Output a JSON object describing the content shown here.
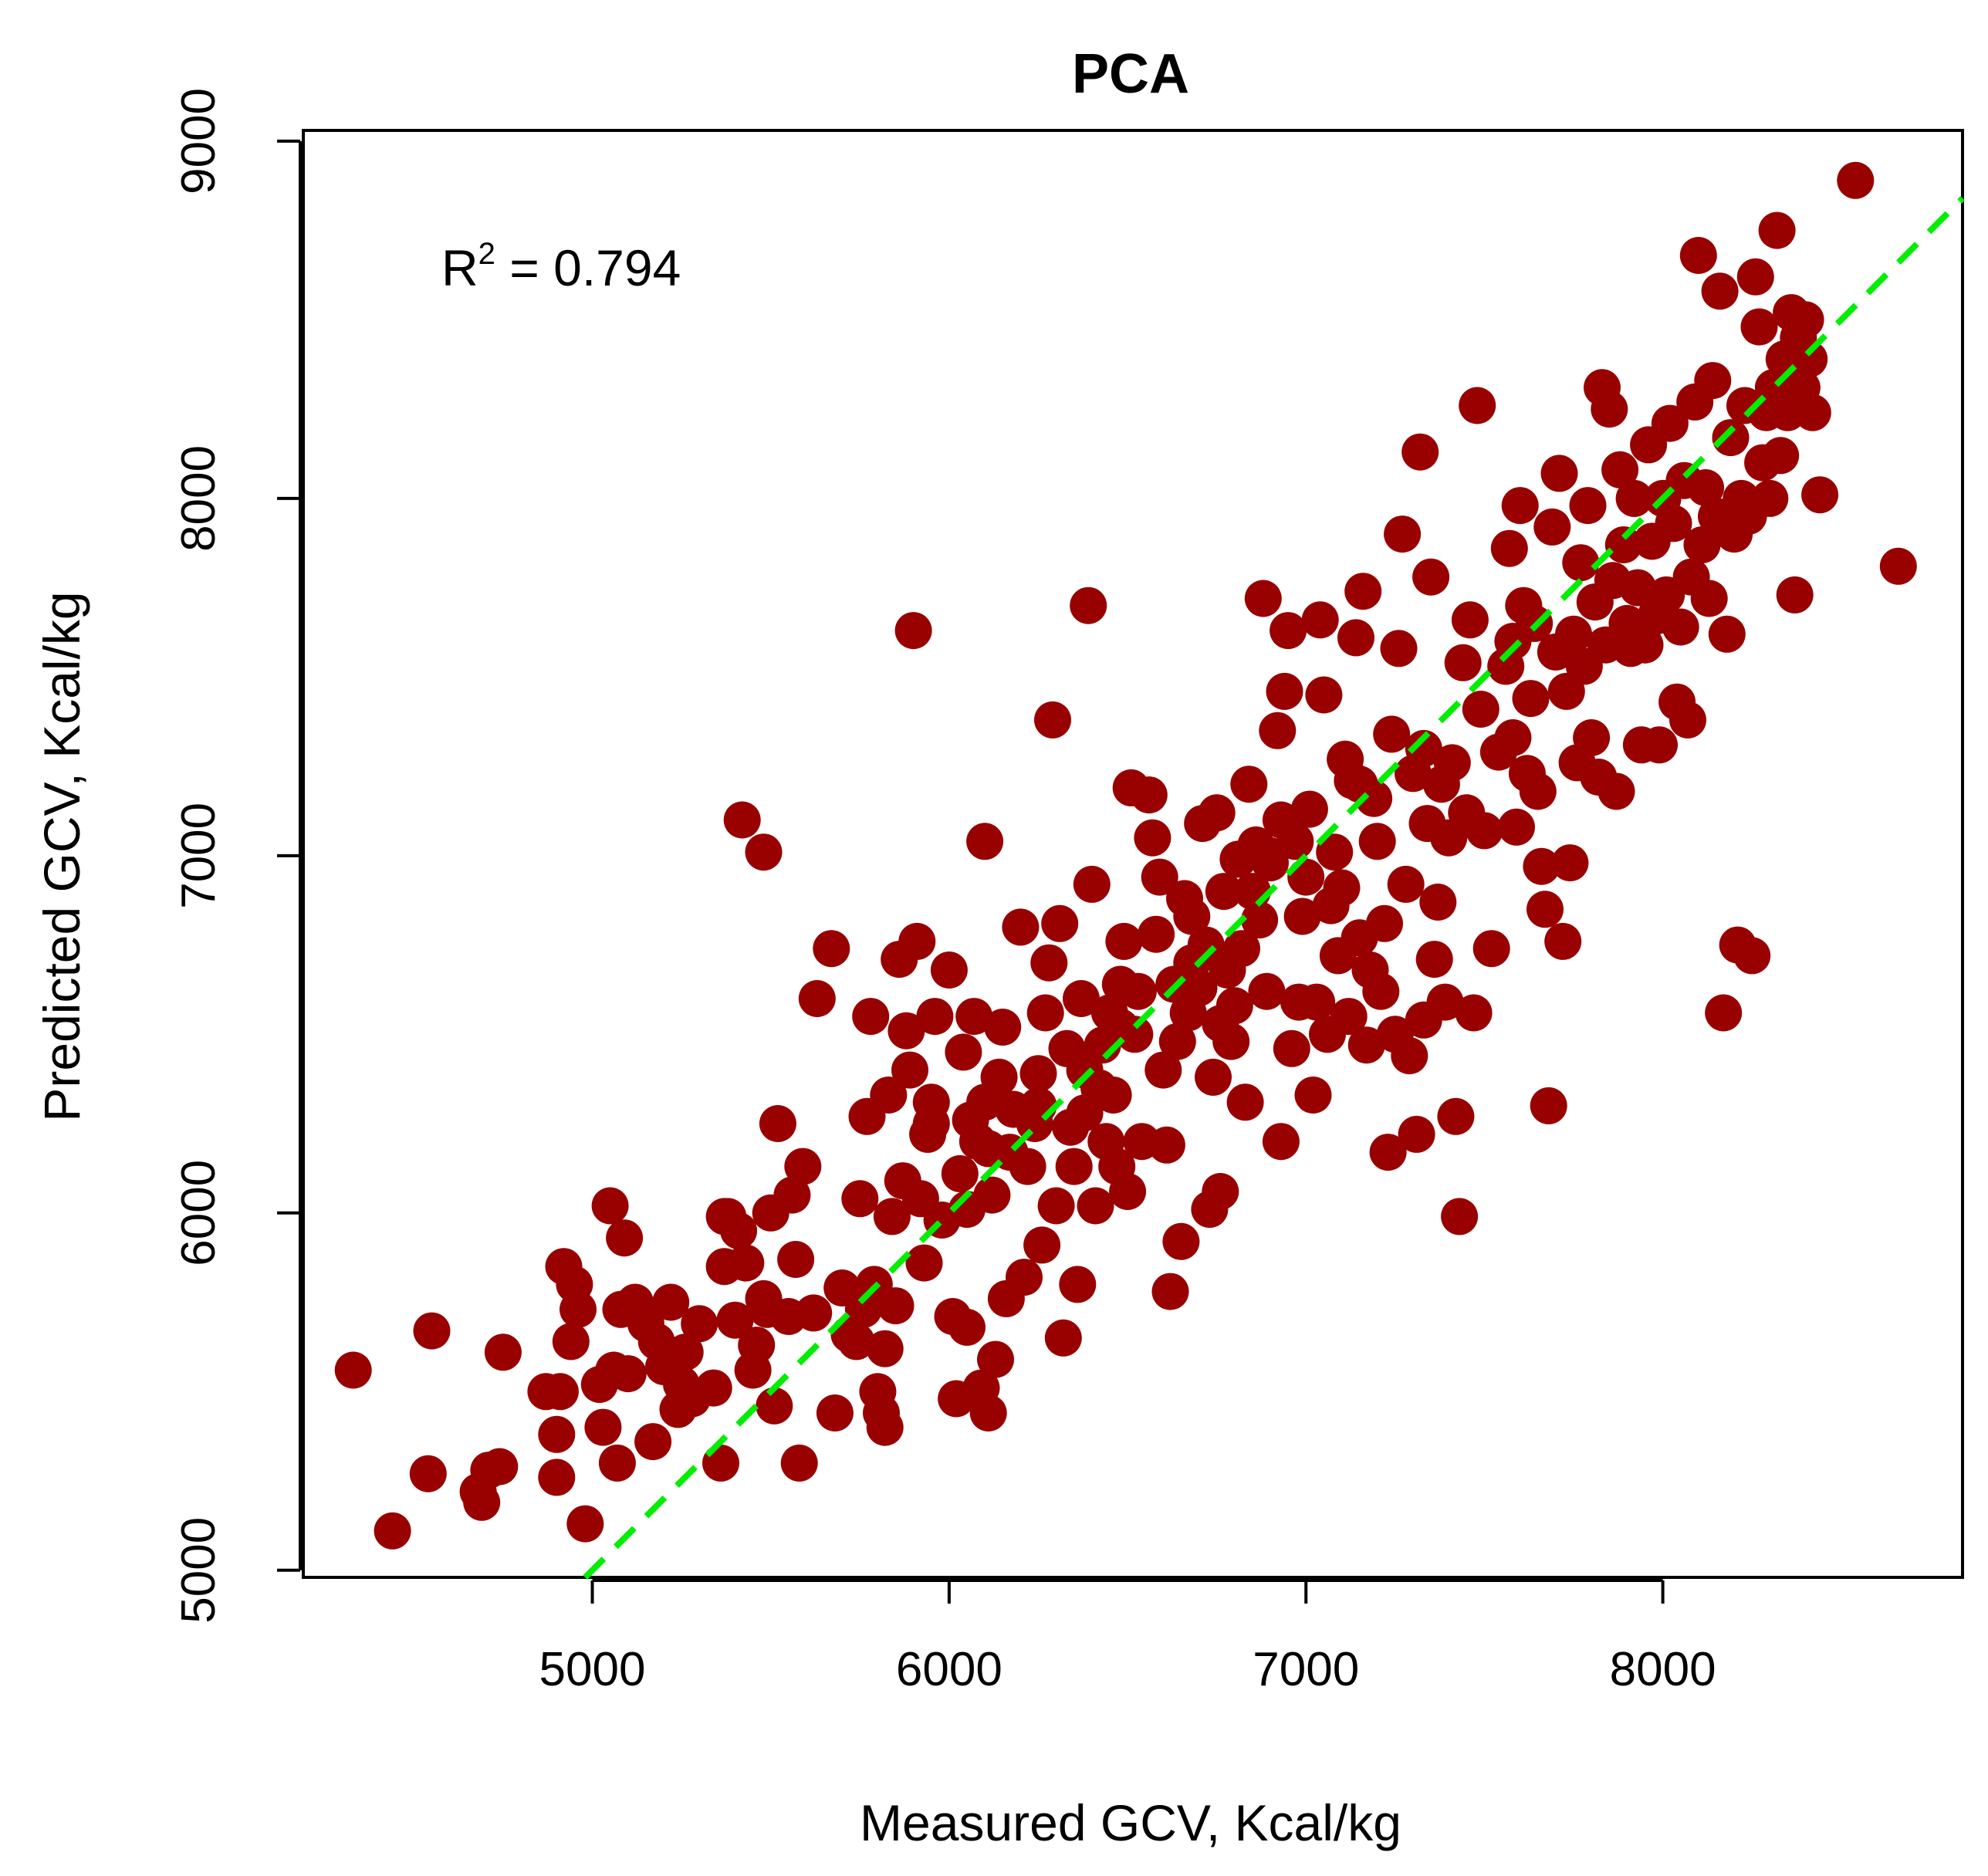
{
  "chart_data": {
    "type": "scatter",
    "title": "PCA",
    "xlabel": "Measured GCV, Kcal/kg",
    "ylabel": "Predicted GCV, Kcal/kg",
    "xlim": [
      4190,
      8840
    ],
    "ylim": [
      4980,
      9030
    ],
    "xticks": [
      "5000",
      "6000",
      "7000",
      "8000"
    ],
    "yticks": [
      "5000",
      "6000",
      "7000",
      "8000",
      "9000"
    ],
    "annotation": {
      "base": "R",
      "sup": "2",
      "text": " = 0.794"
    },
    "grid": false,
    "point_color": "#990000",
    "line_color": "#00ee00",
    "reference_line": {
      "type": "1:1",
      "style": "dashed"
    },
    "points": [
      [
        4330,
        5560
      ],
      [
        4440,
        5110
      ],
      [
        4540,
        5270
      ],
      [
        4550,
        5670
      ],
      [
        4680,
        5220
      ],
      [
        4690,
        5190
      ],
      [
        4710,
        5280
      ],
      [
        4740,
        5290
      ],
      [
        4750,
        5610
      ],
      [
        4870,
        5500
      ],
      [
        4900,
        5380
      ],
      [
        4900,
        5260
      ],
      [
        4910,
        5500
      ],
      [
        4920,
        5850
      ],
      [
        4940,
        5640
      ],
      [
        4950,
        5800
      ],
      [
        4960,
        5730
      ],
      [
        4980,
        5130
      ],
      [
        5020,
        5520
      ],
      [
        5030,
        5400
      ],
      [
        5050,
        6020
      ],
      [
        5060,
        5560
      ],
      [
        5070,
        5300
      ],
      [
        5080,
        5730
      ],
      [
        5090,
        5930
      ],
      [
        5100,
        5550
      ],
      [
        5120,
        5750
      ],
      [
        5150,
        5690
      ],
      [
        5170,
        5360
      ],
      [
        5180,
        5640
      ],
      [
        5200,
        5570
      ],
      [
        5220,
        5750
      ],
      [
        5240,
        5450
      ],
      [
        5250,
        5520
      ],
      [
        5260,
        5610
      ],
      [
        5280,
        5480
      ],
      [
        5300,
        5690
      ],
      [
        5340,
        5510
      ],
      [
        5360,
        5300
      ],
      [
        5370,
        5850
      ],
      [
        5380,
        5990
      ],
      [
        5400,
        5700
      ],
      [
        5410,
        5950
      ],
      [
        5420,
        7100
      ],
      [
        5430,
        5860
      ],
      [
        5450,
        5560
      ],
      [
        5460,
        5630
      ],
      [
        5480,
        5760
      ],
      [
        5490,
        5730
      ],
      [
        5500,
        6000
      ],
      [
        5510,
        5460
      ],
      [
        5480,
        7010
      ],
      [
        5520,
        6250
      ],
      [
        5550,
        5710
      ],
      [
        5560,
        6050
      ],
      [
        5570,
        5870
      ],
      [
        5580,
        5300
      ],
      [
        5590,
        6130
      ],
      [
        5620,
        5720
      ],
      [
        5630,
        6600
      ],
      [
        5670,
        6740
      ],
      [
        5680,
        5440
      ],
      [
        5700,
        5790
      ],
      [
        5720,
        5660
      ],
      [
        5740,
        5640
      ],
      [
        5750,
        6040
      ],
      [
        5760,
        5730
      ],
      [
        5770,
        6270
      ],
      [
        5780,
        6550
      ],
      [
        5790,
        5800
      ],
      [
        5800,
        5500
      ],
      [
        5810,
        5440
      ],
      [
        5820,
        5400
      ],
      [
        5830,
        6330
      ],
      [
        5840,
        5990
      ],
      [
        5850,
        5740
      ],
      [
        5860,
        6710
      ],
      [
        5870,
        6090
      ],
      [
        5880,
        6510
      ],
      [
        5890,
        6400
      ],
      [
        5900,
        7630
      ],
      [
        5910,
        6760
      ],
      [
        5920,
        6040
      ],
      [
        5930,
        5860
      ],
      [
        5940,
        6220
      ],
      [
        5950,
        6310
      ],
      [
        5960,
        6550
      ],
      [
        5980,
        5980
      ],
      [
        6000,
        6680
      ],
      [
        6010,
        5710
      ],
      [
        6020,
        5480
      ],
      [
        6030,
        6110
      ],
      [
        6040,
        6450
      ],
      [
        6050,
        5680
      ],
      [
        6060,
        6260
      ],
      [
        6070,
        6550
      ],
      [
        6080,
        6200
      ],
      [
        6090,
        5510
      ],
      [
        6100,
        7040
      ],
      [
        6100,
        6310
      ],
      [
        6110,
        5440
      ],
      [
        6110,
        6180
      ],
      [
        6120,
        6050
      ],
      [
        6130,
        5590
      ],
      [
        6140,
        6380
      ],
      [
        6150,
        6520
      ],
      [
        6160,
        5760
      ],
      [
        6170,
        6170
      ],
      [
        6180,
        6290
      ],
      [
        6200,
        6800
      ],
      [
        6210,
        5820
      ],
      [
        6220,
        6130
      ],
      [
        6240,
        6250
      ],
      [
        6250,
        6390
      ],
      [
        6260,
        5910
      ],
      [
        6270,
        6560
      ],
      [
        6280,
        6700
      ],
      [
        6290,
        7380
      ],
      [
        6300,
        6020
      ],
      [
        6310,
        6810
      ],
      [
        6320,
        5650
      ],
      [
        6330,
        6460
      ],
      [
        6340,
        6240
      ],
      [
        6350,
        6130
      ],
      [
        6360,
        5800
      ],
      [
        6370,
        6600
      ],
      [
        6380,
        6280
      ],
      [
        6390,
        7700
      ],
      [
        6400,
        6920
      ],
      [
        6410,
        6020
      ],
      [
        6420,
        6350
      ],
      [
        6430,
        6470
      ],
      [
        6440,
        6200
      ],
      [
        6450,
        6560
      ],
      [
        6460,
        6330
      ],
      [
        6470,
        6130
      ],
      [
        6480,
        6640
      ],
      [
        6490,
        6760
      ],
      [
        6500,
        6060
      ],
      [
        6510,
        7190
      ],
      [
        6520,
        6500
      ],
      [
        6530,
        6620
      ],
      [
        6540,
        6200
      ],
      [
        6560,
        7170
      ],
      [
        6570,
        7050
      ],
      [
        6580,
        6780
      ],
      [
        6590,
        6940
      ],
      [
        6600,
        6400
      ],
      [
        6610,
        6190
      ],
      [
        6620,
        5780
      ],
      [
        6630,
        6640
      ],
      [
        6640,
        6480
      ],
      [
        6650,
        5920
      ],
      [
        6660,
        6880
      ],
      [
        6670,
        6560
      ],
      [
        6680,
        6830
      ],
      [
        6700,
        6630
      ],
      [
        6710,
        7090
      ],
      [
        6720,
        6750
      ],
      [
        6730,
        6010
      ],
      [
        6740,
        6380
      ],
      [
        6750,
        7120
      ],
      [
        6760,
        6060
      ],
      [
        6770,
        6900
      ],
      [
        6780,
        6680
      ],
      [
        6790,
        6480
      ],
      [
        6800,
        6580
      ],
      [
        6810,
        6990
      ],
      [
        6820,
        6740
      ],
      [
        6830,
        6310
      ],
      [
        6840,
        7200
      ],
      [
        6850,
        6900
      ],
      [
        6860,
        7030
      ],
      [
        6870,
        6820
      ],
      [
        6880,
        7720
      ],
      [
        6890,
        6620
      ],
      [
        6900,
        6980
      ],
      [
        6920,
        7350
      ],
      [
        6930,
        6200
      ],
      [
        6940,
        7460
      ],
      [
        6950,
        7630
      ],
      [
        6960,
        6460
      ],
      [
        6970,
        7040
      ],
      [
        6980,
        6590
      ],
      [
        6990,
        6830
      ],
      [
        7000,
        6940
      ],
      [
        7010,
        7130
      ],
      [
        7020,
        6330
      ],
      [
        7030,
        6590
      ],
      [
        7040,
        7660
      ],
      [
        7050,
        7450
      ],
      [
        7060,
        6500
      ],
      [
        7070,
        6860
      ],
      [
        7080,
        7010
      ],
      [
        7090,
        6720
      ],
      [
        7100,
        6910
      ],
      [
        7110,
        7270
      ],
      [
        7120,
        6550
      ],
      [
        7130,
        7210
      ],
      [
        7140,
        7610
      ],
      [
        7150,
        6770
      ],
      [
        7160,
        7740
      ],
      [
        7170,
        6470
      ],
      [
        7180,
        6680
      ],
      [
        7190,
        7160
      ],
      [
        7200,
        7040
      ],
      [
        7210,
        6620
      ],
      [
        7220,
        6810
      ],
      [
        7230,
        6170
      ],
      [
        7240,
        7340
      ],
      [
        7250,
        6500
      ],
      [
        7260,
        7580
      ],
      [
        7270,
        7900
      ],
      [
        7280,
        6920
      ],
      [
        7290,
        6440
      ],
      [
        7300,
        7230
      ],
      [
        7310,
        6220
      ],
      [
        7320,
        8130
      ],
      [
        7330,
        6540
      ],
      [
        7340,
        7090
      ],
      [
        7350,
        7780
      ],
      [
        7360,
        6710
      ],
      [
        7370,
        6870
      ],
      [
        7380,
        7200
      ],
      [
        7390,
        6590
      ],
      [
        7400,
        7050
      ],
      [
        7410,
        7260
      ],
      [
        7420,
        6270
      ],
      [
        7430,
        5990
      ],
      [
        7440,
        7540
      ],
      [
        7450,
        7120
      ],
      [
        7460,
        7660
      ],
      [
        7470,
        6560
      ],
      [
        7480,
        8260
      ],
      [
        7490,
        7410
      ],
      [
        7500,
        7070
      ],
      [
        7520,
        6740
      ],
      [
        7540,
        7290
      ],
      [
        7560,
        7530
      ],
      [
        7570,
        7860
      ],
      [
        7580,
        7330
      ],
      [
        7590,
        7080
      ],
      [
        7600,
        7980
      ],
      [
        7610,
        7700
      ],
      [
        7620,
        7230
      ],
      [
        7630,
        7440
      ],
      [
        7640,
        7650
      ],
      [
        7650,
        7180
      ],
      [
        7660,
        6970
      ],
      [
        7670,
        6850
      ],
      [
        7680,
        6300
      ],
      [
        7690,
        7920
      ],
      [
        7700,
        7570
      ],
      [
        7710,
        8070
      ],
      [
        7720,
        6760
      ],
      [
        7730,
        7460
      ],
      [
        7740,
        6980
      ],
      [
        7750,
        7620
      ],
      [
        7760,
        7260
      ],
      [
        7770,
        7820
      ],
      [
        7780,
        7530
      ],
      [
        7790,
        7980
      ],
      [
        7800,
        7330
      ],
      [
        7810,
        7710
      ],
      [
        7820,
        7220
      ],
      [
        7830,
        8310
      ],
      [
        7840,
        7590
      ],
      [
        7850,
        8250
      ],
      [
        7860,
        7770
      ],
      [
        7870,
        7180
      ],
      [
        7880,
        8080
      ],
      [
        7890,
        7870
      ],
      [
        7900,
        7650
      ],
      [
        7910,
        7580
      ],
      [
        7920,
        8000
      ],
      [
        7930,
        7750
      ],
      [
        7940,
        7310
      ],
      [
        7950,
        7590
      ],
      [
        7960,
        8150
      ],
      [
        7970,
        7880
      ],
      [
        7980,
        7670
      ],
      [
        7990,
        7310
      ],
      [
        8000,
        8000
      ],
      [
        8010,
        7730
      ],
      [
        8020,
        8210
      ],
      [
        8030,
        7930
      ],
      [
        8040,
        7430
      ],
      [
        8050,
        7640
      ],
      [
        8060,
        8050
      ],
      [
        8070,
        7380
      ],
      [
        8080,
        7780
      ],
      [
        8090,
        8270
      ],
      [
        8100,
        8680
      ],
      [
        8110,
        7870
      ],
      [
        8120,
        8030
      ],
      [
        8130,
        7720
      ],
      [
        8140,
        8330
      ],
      [
        8150,
        7950
      ],
      [
        8160,
        8580
      ],
      [
        8170,
        6560
      ],
      [
        8180,
        7620
      ],
      [
        8190,
        8170
      ],
      [
        8200,
        7900
      ],
      [
        8210,
        6750
      ],
      [
        8220,
        8000
      ],
      [
        8230,
        8260
      ],
      [
        8240,
        7950
      ],
      [
        8250,
        6720
      ],
      [
        8260,
        8620
      ],
      [
        8270,
        8480
      ],
      [
        8280,
        8100
      ],
      [
        8290,
        8240
      ],
      [
        8300,
        8000
      ],
      [
        8310,
        8310
      ],
      [
        8320,
        8750
      ],
      [
        8330,
        8120
      ],
      [
        8340,
        8390
      ],
      [
        8350,
        8240
      ],
      [
        8360,
        8520
      ],
      [
        8370,
        7730
      ],
      [
        8380,
        8450
      ],
      [
        8390,
        8310
      ],
      [
        8400,
        8500
      ],
      [
        8410,
        8390
      ],
      [
        8420,
        8240
      ],
      [
        8440,
        8010
      ],
      [
        8540,
        8890
      ],
      [
        8660,
        7810
      ],
      [
        5370,
        5990
      ],
      [
        6760,
        6530
      ],
      [
        5820,
        5620
      ],
      [
        6480,
        6520
      ],
      [
        6900,
        7000
      ],
      [
        7150,
        7200
      ],
      [
        6250,
        6300
      ],
      [
        5950,
        6250
      ],
      [
        7580,
        7600
      ],
      [
        6680,
        6700
      ],
      [
        6050,
        6010
      ],
      [
        6930,
        7100
      ],
      [
        7330,
        7300
      ],
      [
        6380,
        6400
      ]
    ]
  }
}
